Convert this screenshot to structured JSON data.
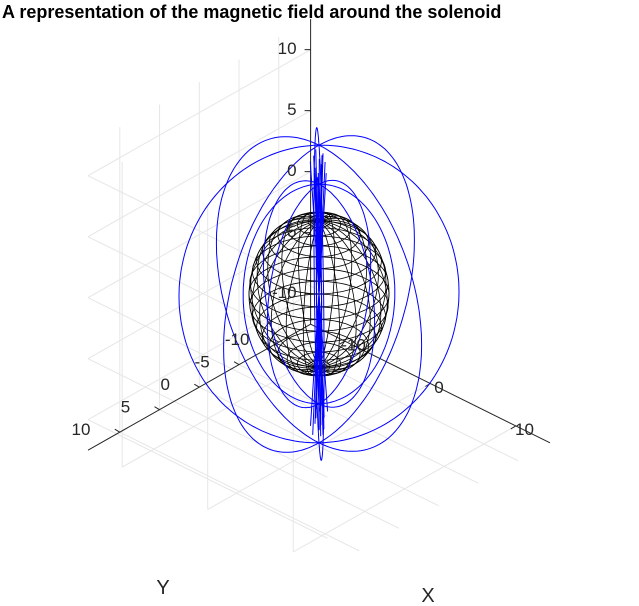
{
  "chart_data": {
    "type": "line",
    "view": "3d",
    "title": "A representation of the magnetic field around the solenoid",
    "xlabel": "X",
    "ylabel": "Y",
    "zlabel": "",
    "xlim": [
      -14,
      14
    ],
    "ylim": [
      -14,
      14
    ],
    "zlim": [
      -12.5,
      12.5
    ],
    "xticks": [
      -10,
      0,
      10
    ],
    "xtick_labels": [
      "-10",
      "0",
      "10"
    ],
    "yticks": [
      -10,
      -5,
      0,
      5,
      10
    ],
    "ytick_labels": [
      "-10",
      "-5",
      "0",
      "5",
      "10"
    ],
    "zticks": [
      -10,
      -5,
      0,
      5,
      10
    ],
    "ztick_labels": [
      "-10",
      "-5",
      "0",
      "5",
      "10"
    ],
    "grid": true,
    "colors": {
      "field_lines": "#0000ff",
      "sphere_mesh": "#000000",
      "axes": "#262626",
      "grid": "#e6e6e6"
    },
    "series": [
      {
        "kind": "mesh-sphere",
        "center": [
          0,
          0,
          0
        ],
        "radius": 6,
        "latitude_rings": 20,
        "meridians": 24
      },
      {
        "kind": "field-lines",
        "description_of_shape": "dipole loops",
        "planes_deg": [
          0,
          45,
          90,
          135,
          180,
          225,
          270,
          315
        ],
        "loop_widths": [
          6.5,
          12
        ],
        "loop_heights": [
          9,
          12.2
        ],
        "axial_line_extent": [
          -11.5,
          11.5
        ]
      }
    ]
  }
}
